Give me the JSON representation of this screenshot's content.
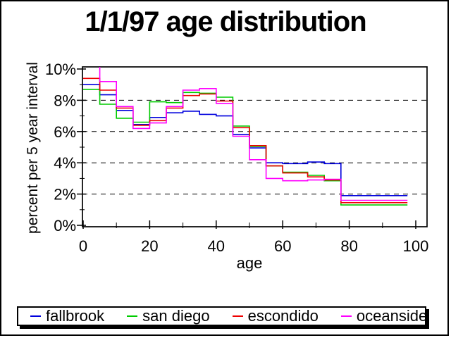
{
  "title": "1/1/97 age distribution",
  "y_axis": {
    "title": "percent per 5 year interval",
    "tick_values": [
      0,
      2,
      4,
      6,
      8,
      10
    ],
    "tick_labels": [
      "0%",
      "2%",
      "4%",
      "6%",
      "8%",
      "10%"
    ],
    "minor_tick_values": [
      1,
      3,
      5,
      7,
      9
    ],
    "range": [
      0,
      10
    ]
  },
  "x_axis": {
    "title": "age",
    "tick_values": [
      0,
      20,
      40,
      60,
      80,
      100
    ],
    "tick_labels": [
      "0",
      "20",
      "40",
      "60",
      "80",
      "100"
    ],
    "minor_tick_values": [
      10,
      30,
      50,
      70,
      90
    ],
    "range": [
      0,
      100
    ]
  },
  "legend": {
    "items": [
      {
        "label": "fallbrook"
      },
      {
        "label": "san diego"
      },
      {
        "label": "escondido"
      },
      {
        "label": "oceanside"
      }
    ]
  },
  "chart_data": {
    "type": "line",
    "subtype": "step-histogram-outline",
    "title": "1/1/97 age distribution",
    "xlabel": "age",
    "ylabel": "percent per 5 year interval",
    "xlim": [
      0,
      100
    ],
    "ylim": [
      0,
      10
    ],
    "grid": "horizontal dashed",
    "gridline_values": [
      2,
      4,
      6,
      8
    ],
    "legend_position": "bottom",
    "bin_edges": [
      0,
      5,
      10,
      15,
      20,
      25,
      30,
      35,
      40,
      45,
      50,
      55,
      60,
      67.5,
      72.5,
      77.5,
      97.5
    ],
    "series": [
      {
        "name": "fallbrook",
        "color": "#0000dd",
        "values": [
          9.0,
          8.35,
          7.35,
          6.45,
          6.9,
          7.2,
          7.3,
          7.1,
          7.0,
          5.8,
          4.95,
          4.0,
          3.95,
          4.05,
          3.95,
          1.9
        ]
      },
      {
        "name": "san diego",
        "color": "#00cc00",
        "values": [
          8.7,
          7.75,
          6.85,
          6.6,
          7.9,
          7.85,
          8.5,
          8.45,
          8.2,
          6.35,
          5.05,
          3.8,
          3.4,
          3.2,
          2.85,
          1.3
        ]
      },
      {
        "name": "escondido",
        "color": "#ee0000",
        "values": [
          9.4,
          8.65,
          7.5,
          6.4,
          6.7,
          7.5,
          8.3,
          8.4,
          7.95,
          6.25,
          5.1,
          3.8,
          3.35,
          3.1,
          2.9,
          1.45
        ]
      },
      {
        "name": "oceanside",
        "color": "#ff00ff",
        "first_bin_clipped_at_top": true,
        "values": [
          10.3,
          9.2,
          7.6,
          6.2,
          6.55,
          7.6,
          8.65,
          8.75,
          7.8,
          5.7,
          4.2,
          3.0,
          2.85,
          2.9,
          2.95,
          1.6
        ]
      }
    ]
  }
}
